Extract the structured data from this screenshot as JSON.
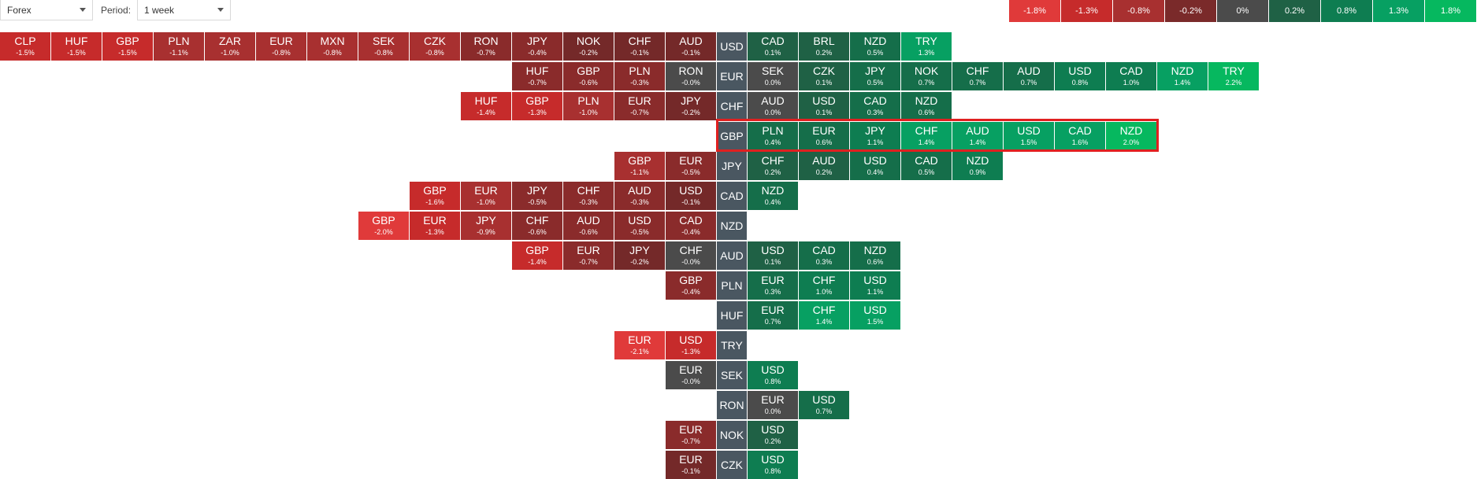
{
  "toolbar": {
    "market_select": "Forex",
    "period_label": "Period:",
    "period_select": "1 week"
  },
  "legend": [
    {
      "label": "-1.8%",
      "color": "#e03a3a"
    },
    {
      "label": "-1.3%",
      "color": "#c62b2b"
    },
    {
      "label": "-0.8%",
      "color": "#a83030"
    },
    {
      "label": "-0.2%",
      "color": "#7a2a2a"
    },
    {
      "label": "0%",
      "color": "#4b4b4b"
    },
    {
      "label": "0.2%",
      "color": "#1f6145"
    },
    {
      "label": "0.8%",
      "color": "#0e7d51"
    },
    {
      "label": "1.3%",
      "color": "#07a062"
    },
    {
      "label": "1.8%",
      "color": "#06b85f"
    }
  ],
  "rows": [
    {
      "base": "USD",
      "left": [
        [
          "CLP",
          "-1.5%"
        ],
        [
          "HUF",
          "-1.5%"
        ],
        [
          "GBP",
          "-1.5%"
        ],
        [
          "PLN",
          "-1.1%"
        ],
        [
          "ZAR",
          "-1.0%"
        ],
        [
          "EUR",
          "-0.8%"
        ],
        [
          "MXN",
          "-0.8%"
        ],
        [
          "SEK",
          "-0.8%"
        ],
        [
          "CZK",
          "-0.8%"
        ],
        [
          "RON",
          "-0.7%"
        ],
        [
          "JPY",
          "-0.4%"
        ],
        [
          "NOK",
          "-0.2%"
        ],
        [
          "CHF",
          "-0.1%"
        ],
        [
          "AUD",
          "-0.1%"
        ]
      ],
      "right": [
        [
          "CAD",
          "0.1%"
        ],
        [
          "BRL",
          "0.2%"
        ],
        [
          "NZD",
          "0.5%"
        ],
        [
          "TRY",
          "1.3%"
        ]
      ]
    },
    {
      "base": "EUR",
      "left": [
        [
          "HUF",
          "-0.7%"
        ],
        [
          "GBP",
          "-0.6%"
        ],
        [
          "PLN",
          "-0.3%"
        ],
        [
          "RON",
          "-0.0%"
        ]
      ],
      "right": [
        [
          "SEK",
          "0.0%"
        ],
        [
          "CZK",
          "0.1%"
        ],
        [
          "JPY",
          "0.5%"
        ],
        [
          "NOK",
          "0.7%"
        ],
        [
          "CHF",
          "0.7%"
        ],
        [
          "AUD",
          "0.7%"
        ],
        [
          "USD",
          "0.8%"
        ],
        [
          "CAD",
          "1.0%"
        ],
        [
          "NZD",
          "1.4%"
        ],
        [
          "TRY",
          "2.2%"
        ]
      ]
    },
    {
      "base": "CHF",
      "left": [
        [
          "HUF",
          "-1.4%"
        ],
        [
          "GBP",
          "-1.3%"
        ],
        [
          "PLN",
          "-1.0%"
        ],
        [
          "EUR",
          "-0.7%"
        ],
        [
          "JPY",
          "-0.2%"
        ]
      ],
      "right": [
        [
          "AUD",
          "0.0%"
        ],
        [
          "USD",
          "0.1%"
        ],
        [
          "CAD",
          "0.3%"
        ],
        [
          "NZD",
          "0.6%"
        ]
      ]
    },
    {
      "base": "GBP",
      "left": [],
      "right": [
        [
          "PLN",
          "0.4%"
        ],
        [
          "EUR",
          "0.6%"
        ],
        [
          "JPY",
          "1.1%"
        ],
        [
          "CHF",
          "1.4%"
        ],
        [
          "AUD",
          "1.4%"
        ],
        [
          "USD",
          "1.5%"
        ],
        [
          "CAD",
          "1.6%"
        ],
        [
          "NZD",
          "2.0%"
        ]
      ]
    },
    {
      "base": "JPY",
      "left": [
        [
          "GBP",
          "-1.1%"
        ],
        [
          "EUR",
          "-0.5%"
        ]
      ],
      "right": [
        [
          "CHF",
          "0.2%"
        ],
        [
          "AUD",
          "0.2%"
        ],
        [
          "USD",
          "0.4%"
        ],
        [
          "CAD",
          "0.5%"
        ],
        [
          "NZD",
          "0.9%"
        ]
      ]
    },
    {
      "base": "CAD",
      "left": [
        [
          "GBP",
          "-1.6%"
        ],
        [
          "EUR",
          "-1.0%"
        ],
        [
          "JPY",
          "-0.5%"
        ],
        [
          "CHF",
          "-0.3%"
        ],
        [
          "AUD",
          "-0.3%"
        ],
        [
          "USD",
          "-0.1%"
        ]
      ],
      "right": [
        [
          "NZD",
          "0.4%"
        ]
      ]
    },
    {
      "base": "NZD",
      "left": [
        [
          "GBP",
          "-2.0%"
        ],
        [
          "EUR",
          "-1.3%"
        ],
        [
          "JPY",
          "-0.9%"
        ],
        [
          "CHF",
          "-0.6%"
        ],
        [
          "AUD",
          "-0.6%"
        ],
        [
          "USD",
          "-0.5%"
        ],
        [
          "CAD",
          "-0.4%"
        ]
      ],
      "right": []
    },
    {
      "base": "AUD",
      "left": [
        [
          "GBP",
          "-1.4%"
        ],
        [
          "EUR",
          "-0.7%"
        ],
        [
          "JPY",
          "-0.2%"
        ],
        [
          "CHF",
          "-0.0%"
        ]
      ],
      "right": [
        [
          "USD",
          "0.1%"
        ],
        [
          "CAD",
          "0.3%"
        ],
        [
          "NZD",
          "0.6%"
        ]
      ]
    },
    {
      "base": "PLN",
      "left": [
        [
          "GBP",
          "-0.4%"
        ]
      ],
      "right": [
        [
          "EUR",
          "0.3%"
        ],
        [
          "CHF",
          "1.0%"
        ],
        [
          "USD",
          "1.1%"
        ]
      ]
    },
    {
      "base": "HUF",
      "left": [],
      "right": [
        [
          "EUR",
          "0.7%"
        ],
        [
          "CHF",
          "1.4%"
        ],
        [
          "USD",
          "1.5%"
        ]
      ]
    },
    {
      "base": "TRY",
      "left": [
        [
          "EUR",
          "-2.1%"
        ],
        [
          "USD",
          "-1.3%"
        ]
      ],
      "right": []
    },
    {
      "base": "SEK",
      "left": [
        [
          "EUR",
          "-0.0%"
        ]
      ],
      "right": [
        [
          "USD",
          "0.8%"
        ]
      ]
    },
    {
      "base": "RON",
      "left": [],
      "right": [
        [
          "EUR",
          "0.0%"
        ],
        [
          "USD",
          "0.7%"
        ]
      ]
    },
    {
      "base": "NOK",
      "left": [
        [
          "EUR",
          "-0.7%"
        ]
      ],
      "right": [
        [
          "USD",
          "0.2%"
        ]
      ]
    },
    {
      "base": "CZK",
      "left": [
        [
          "EUR",
          "-0.1%"
        ]
      ],
      "right": [
        [
          "USD",
          "0.8%"
        ]
      ]
    }
  ]
}
